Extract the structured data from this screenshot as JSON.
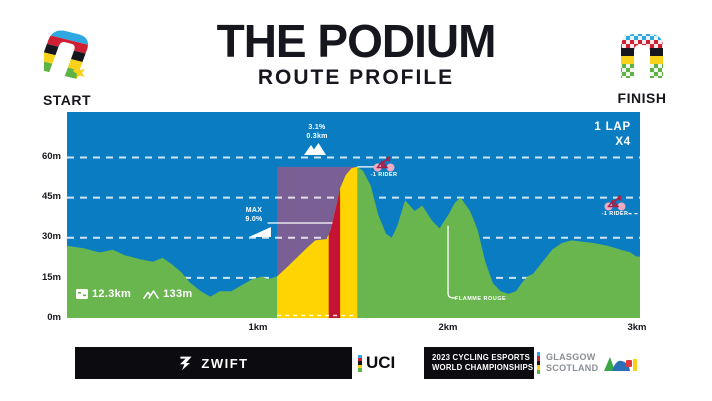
{
  "header": {
    "title": "THE PODIUM",
    "subtitle": "ROUTE PROFILE",
    "start_label": "START",
    "finish_label": "FINISH"
  },
  "chart": {
    "lap_line1": "1 LAP",
    "lap_line2": "X4",
    "y_ticks": [
      "60m",
      "45m",
      "30m",
      "15m",
      "0m"
    ],
    "x_ticks": [
      "1km",
      "2km",
      "3km"
    ],
    "stats": {
      "distance": "12.3km",
      "elevation": "133m"
    },
    "climb_labels": {
      "avg_pct": "3.1%",
      "length": "0.3km",
      "max_word": "MAX",
      "max_pct": "9.0%"
    },
    "riders": [
      {
        "label": "-1 RIDER"
      },
      {
        "label": "-1 RIDER"
      }
    ],
    "flamme_rouge_label": "FLAMME ROUGE",
    "colors": {
      "sky": "#0a7dc2",
      "terrain": "#69b54e",
      "segment_band": "#7a5f94",
      "segment_fill": "#ffd400",
      "max_gradient_fill": "#c41335",
      "gridline": "rgba(255,255,255,0.8)",
      "annotation": "#ffffff"
    }
  },
  "chart_data": {
    "type": "area",
    "title": "The Podium route profile",
    "x_unit": "km",
    "y_unit": "m",
    "xlim": [
      0,
      3
    ],
    "ylim": [
      0,
      77
    ],
    "gridlines_m": [
      15,
      30,
      45,
      60
    ],
    "x_tick_km": [
      1,
      2,
      3
    ],
    "profile": [
      [
        0.0,
        27
      ],
      [
        0.09,
        26
      ],
      [
        0.17,
        24.5
      ],
      [
        0.24,
        25.5
      ],
      [
        0.3,
        23.5
      ],
      [
        0.38,
        22
      ],
      [
        0.45,
        21
      ],
      [
        0.5,
        22.5
      ],
      [
        0.55,
        20
      ],
      [
        0.6,
        17
      ],
      [
        0.64,
        13.5
      ],
      [
        0.7,
        10
      ],
      [
        0.75,
        8
      ],
      [
        0.8,
        10
      ],
      [
        0.86,
        10
      ],
      [
        0.92,
        12.5
      ],
      [
        0.97,
        14.5
      ],
      [
        1.02,
        15.5
      ],
      [
        1.05,
        14.5
      ],
      [
        1.1,
        15.5
      ],
      [
        1.16,
        19.5
      ],
      [
        1.21,
        23
      ],
      [
        1.26,
        26.5
      ],
      [
        1.3,
        29
      ],
      [
        1.36,
        29.5
      ],
      [
        1.38,
        33
      ],
      [
        1.41,
        42
      ],
      [
        1.43,
        48.5
      ],
      [
        1.46,
        53.5
      ],
      [
        1.49,
        56
      ],
      [
        1.52,
        56.5
      ],
      [
        1.55,
        55
      ],
      [
        1.59,
        49.5
      ],
      [
        1.63,
        38.5
      ],
      [
        1.67,
        31.5
      ],
      [
        1.7,
        30
      ],
      [
        1.73,
        34.5
      ],
      [
        1.77,
        44
      ],
      [
        1.82,
        40
      ],
      [
        1.86,
        42
      ],
      [
        1.91,
        36.5
      ],
      [
        1.95,
        33.5
      ],
      [
        2.0,
        39
      ],
      [
        2.03,
        43
      ],
      [
        2.06,
        45
      ],
      [
        2.11,
        40
      ],
      [
        2.15,
        33
      ],
      [
        2.19,
        21
      ],
      [
        2.23,
        13
      ],
      [
        2.27,
        10
      ],
      [
        2.31,
        9
      ],
      [
        2.35,
        10
      ],
      [
        2.38,
        13
      ],
      [
        2.41,
        15.5
      ],
      [
        2.44,
        16.5
      ],
      [
        2.49,
        21
      ],
      [
        2.54,
        25.5
      ],
      [
        2.59,
        28
      ],
      [
        2.64,
        29
      ],
      [
        2.7,
        28.5
      ],
      [
        2.76,
        28
      ],
      [
        2.83,
        27
      ],
      [
        2.9,
        25.5
      ],
      [
        2.95,
        24.5
      ],
      [
        2.98,
        23
      ],
      [
        3.0,
        23
      ]
    ],
    "climb_segment": {
      "start_km": 1.1,
      "end_km": 1.52,
      "band_top_m": 56.5,
      "avg_gradient": "3.1%",
      "length": "0.3km",
      "max_gradient": "9.0%",
      "max_gradient_km": [
        1.37,
        1.43
      ]
    },
    "annotation_lines": {
      "max_line": {
        "from_km": 1.05,
        "to_km": 1.39,
        "elev_m": 35.5,
        "dashed": false
      },
      "peak_line": {
        "from_km": 1.52,
        "to_km": 1.63,
        "elev_m": 56.5,
        "dashed": false
      },
      "rider2_line": {
        "from_km": 2.94,
        "to_km": 3.0,
        "elev_m": 39,
        "dashed": true
      }
    },
    "rider_events": [
      {
        "km": 1.66,
        "elev_m": 56.5
      },
      {
        "km": 2.87,
        "elev_m": 42
      }
    ],
    "flamme_rouge": {
      "km": 1.995,
      "top_m": 34.5,
      "bottom_m": 7.5
    },
    "laps": {
      "laps_text": "1 LAP",
      "multiplier": "X4"
    },
    "route_totals": {
      "distance_km": 12.3,
      "elevation_gain_m": 133
    }
  },
  "footer": {
    "zwift_wordmark": "ZWIFT",
    "uci_wordmark": "UCI",
    "champs_line1": "2023 CYCLING ESPORTS",
    "champs_line2": "WORLD CHAMPIONSHIPS",
    "host_line1": "GLASGOW",
    "host_line2": "SCOTLAND"
  }
}
